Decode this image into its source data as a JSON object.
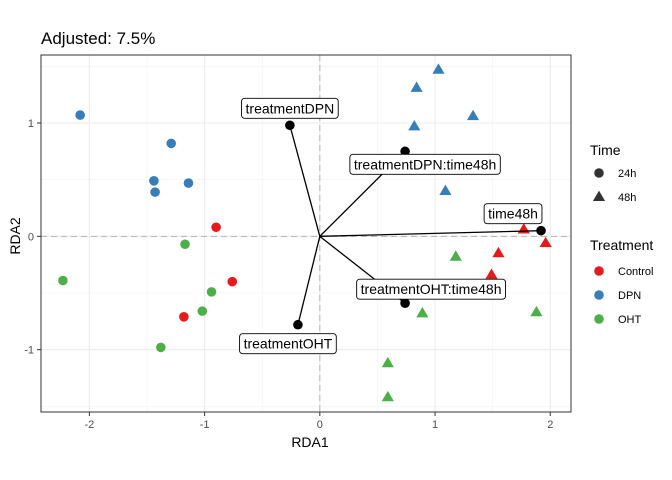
{
  "chart_data": {
    "type": "scatter",
    "title": "Adjusted: 7.5%",
    "xlabel": "RDA1",
    "ylabel": "RDA2",
    "xlim": [
      -2.42,
      2.18
    ],
    "ylim": [
      -1.55,
      1.6
    ],
    "xticks": [
      -2,
      -1,
      0,
      1,
      2
    ],
    "yticks": [
      -1,
      0,
      1
    ],
    "grid": true,
    "reference_lines": {
      "x": 0,
      "y": 0,
      "style": "dashed"
    },
    "colors": {
      "Control": "#e41a1c",
      "DPN": "#377eb8",
      "OHT": "#4daf4a"
    },
    "points": [
      {
        "x": -2.08,
        "y": 1.07,
        "treatment": "DPN",
        "time": "24h"
      },
      {
        "x": -1.29,
        "y": 0.82,
        "treatment": "DPN",
        "time": "24h"
      },
      {
        "x": -1.44,
        "y": 0.49,
        "treatment": "DPN",
        "time": "24h"
      },
      {
        "x": -1.14,
        "y": 0.47,
        "treatment": "DPN",
        "time": "24h"
      },
      {
        "x": -1.43,
        "y": 0.39,
        "treatment": "DPN",
        "time": "24h"
      },
      {
        "x": -0.9,
        "y": 0.08,
        "treatment": "Control",
        "time": "24h"
      },
      {
        "x": -0.76,
        "y": -0.4,
        "treatment": "Control",
        "time": "24h"
      },
      {
        "x": -1.18,
        "y": -0.71,
        "treatment": "Control",
        "time": "24h"
      },
      {
        "x": -1.17,
        "y": -0.07,
        "treatment": "OHT",
        "time": "24h"
      },
      {
        "x": -2.23,
        "y": -0.39,
        "treatment": "OHT",
        "time": "24h"
      },
      {
        "x": -0.94,
        "y": -0.49,
        "treatment": "OHT",
        "time": "24h"
      },
      {
        "x": -1.02,
        "y": -0.66,
        "treatment": "OHT",
        "time": "24h"
      },
      {
        "x": -1.38,
        "y": -0.98,
        "treatment": "OHT",
        "time": "24h"
      },
      {
        "x": 1.03,
        "y": 1.47,
        "treatment": "DPN",
        "time": "48h"
      },
      {
        "x": 0.84,
        "y": 1.31,
        "treatment": "DPN",
        "time": "48h"
      },
      {
        "x": 0.82,
        "y": 0.97,
        "treatment": "DPN",
        "time": "48h"
      },
      {
        "x": 1.33,
        "y": 1.06,
        "treatment": "DPN",
        "time": "48h"
      },
      {
        "x": 1.09,
        "y": 0.4,
        "treatment": "DPN",
        "time": "48h"
      },
      {
        "x": 1.77,
        "y": 0.06,
        "treatment": "Control",
        "time": "48h"
      },
      {
        "x": 1.96,
        "y": -0.06,
        "treatment": "Control",
        "time": "48h"
      },
      {
        "x": 1.55,
        "y": -0.15,
        "treatment": "Control",
        "time": "48h"
      },
      {
        "x": 1.49,
        "y": -0.34,
        "treatment": "Control",
        "time": "48h"
      },
      {
        "x": 1.18,
        "y": -0.18,
        "treatment": "OHT",
        "time": "48h"
      },
      {
        "x": 0.89,
        "y": -0.68,
        "treatment": "OHT",
        "time": "48h"
      },
      {
        "x": 1.88,
        "y": -0.67,
        "treatment": "OHT",
        "time": "48h"
      },
      {
        "x": 0.59,
        "y": -1.12,
        "treatment": "OHT",
        "time": "48h"
      },
      {
        "x": 0.59,
        "y": -1.42,
        "treatment": "OHT",
        "time": "48h"
      }
    ],
    "biplot": [
      {
        "label": "treatmentDPN",
        "x": -0.26,
        "y": 0.98
      },
      {
        "label": "treatmentDPN:time48h",
        "x": 0.74,
        "y": 0.75
      },
      {
        "label": "time48h",
        "x": 1.92,
        "y": 0.05
      },
      {
        "label": "treatmentOHT:time48h",
        "x": 0.74,
        "y": -0.59
      },
      {
        "label": "treatmentOHT",
        "x": -0.19,
        "y": -0.78
      }
    ],
    "legends": [
      {
        "title": "Time",
        "items": [
          {
            "label": "24h",
            "shape": "circle"
          },
          {
            "label": "48h",
            "shape": "triangle"
          }
        ]
      },
      {
        "title": "Treatment",
        "items": [
          {
            "label": "Control",
            "color": "#e41a1c"
          },
          {
            "label": "DPN",
            "color": "#377eb8"
          },
          {
            "label": "OHT",
            "color": "#4daf4a"
          }
        ]
      }
    ]
  }
}
